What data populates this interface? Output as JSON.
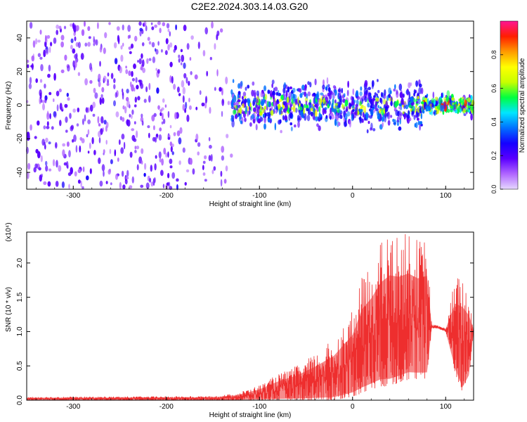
{
  "title": "C2E2.2024.303.14.03.G20",
  "chart_data": [
    {
      "type": "heatmap",
      "xlabel": "Height of straight line (km)",
      "ylabel": "Frequency (Hz)",
      "xlim": [
        -350,
        130
      ],
      "ylim": [
        -50,
        50
      ],
      "xticks": [
        "-300",
        "-200",
        "-100",
        "0",
        "100"
      ],
      "yticks": [
        "-40",
        "-20",
        "0",
        "20",
        "40"
      ],
      "grid": false,
      "colorbar": {
        "label": "Normalized spectral amplitude",
        "range": [
          0,
          1
        ],
        "ticks": [
          "0.0",
          "0.2",
          "0.4",
          "0.6",
          "0.8"
        ],
        "colors": [
          "#e6d8ff",
          "#b066ff",
          "#5a00ff",
          "#1500ff",
          "#0070ff",
          "#00e6ff",
          "#00ff40",
          "#c8ff00",
          "#ffff00",
          "#ff9a00",
          "#ff1e00",
          "#ff1493"
        ]
      },
      "bands": [
        {
          "x_range": [
            -350,
            -175
          ],
          "freq_halfwidth": 50,
          "density": 0.55,
          "amplitude": 0.18
        },
        {
          "x_range": [
            -175,
            -130
          ],
          "freq_halfwidth": 50,
          "density": 0.25,
          "amplitude": 0.15
        },
        {
          "x_range": [
            -130,
            75
          ],
          "freq_halfwidth": 18,
          "density": 0.75,
          "amplitude": 0.3
        },
        {
          "x_range": [
            75,
            130
          ],
          "freq_halfwidth": 8,
          "density": 0.8,
          "amplitude": 0.45
        }
      ]
    },
    {
      "type": "line",
      "xlabel": "Height of straight line (km)",
      "ylabel": "SNR (10 * v/v)",
      "y_multiplier": "(x10⁴)",
      "xlim": [
        -350,
        130
      ],
      "ylim": [
        0,
        2.45
      ],
      "xticks": [
        "-300",
        "-200",
        "-100",
        "0",
        "100"
      ],
      "yticks": [
        "0.0",
        "0.5",
        "1.0",
        "1.5",
        "2.0"
      ],
      "grid": false,
      "color": "#ee2e2e",
      "envelope": {
        "x": [
          -350,
          -150,
          -125,
          -100,
          -80,
          -60,
          -40,
          -20,
          0,
          10,
          20,
          30,
          40,
          50,
          60,
          70,
          80,
          85,
          90,
          100,
          110,
          118,
          125,
          130
        ],
        "y_max": [
          0.05,
          0.06,
          0.1,
          0.22,
          0.38,
          0.5,
          0.68,
          0.9,
          1.3,
          1.8,
          2.0,
          2.3,
          2.45,
          2.4,
          2.45,
          2.35,
          2.4,
          1.1,
          1.1,
          1.05,
          1.8,
          1.85,
          1.6,
          1.05
        ],
        "y_min": [
          0.0,
          0.0,
          0.0,
          0.0,
          0.0,
          0.0,
          0.0,
          0.0,
          0.05,
          0.1,
          0.15,
          0.2,
          0.2,
          0.25,
          0.3,
          0.3,
          0.3,
          1.05,
          1.05,
          1.0,
          0.4,
          0.1,
          0.3,
          1.0
        ]
      }
    }
  ]
}
